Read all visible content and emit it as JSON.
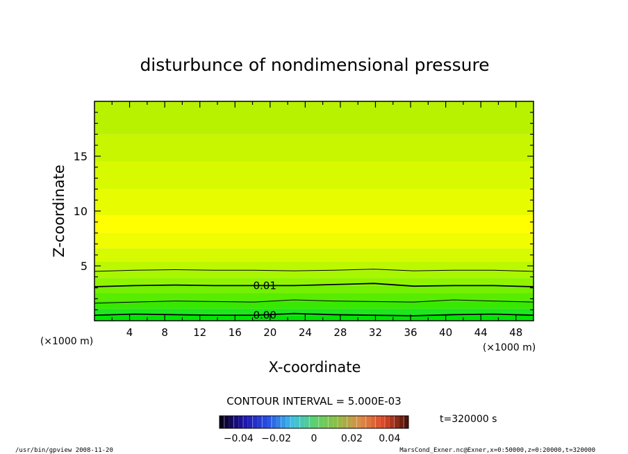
{
  "chart_data": {
    "type": "contour",
    "title": "disturbunce of nondimensional pressure",
    "xlabel": "X-coordinate",
    "ylabel": "Z-coordinate",
    "x_unit_note": "(×1000 m)",
    "y_unit_note": "(×1000 m)",
    "xlim": [
      0,
      50
    ],
    "ylim": [
      0,
      20
    ],
    "x_ticks": [
      4,
      8,
      12,
      16,
      20,
      24,
      28,
      32,
      36,
      40,
      44,
      48
    ],
    "y_ticks": [
      5,
      10,
      15
    ],
    "contour_interval_label": "CONTOUR INTERVAL = 5.000E-03",
    "contour_labels": [
      {
        "text": "0.01",
        "x": 17.5,
        "z": 3.2
      },
      {
        "text": "0.00",
        "x": 17.5,
        "z": 0.5
      }
    ],
    "contour_lines": [
      {
        "level": 0.015,
        "z": [
          4.5,
          4.6,
          4.65,
          4.6,
          4.6,
          4.55,
          4.6,
          4.7,
          4.55,
          4.6,
          4.6,
          4.5
        ]
      },
      {
        "level": 0.01,
        "z": [
          3.1,
          3.2,
          3.25,
          3.2,
          3.2,
          3.2,
          3.3,
          3.4,
          3.15,
          3.2,
          3.2,
          3.1
        ]
      },
      {
        "level": 0.005,
        "z": [
          1.6,
          1.7,
          1.8,
          1.75,
          1.7,
          1.9,
          1.8,
          1.75,
          1.7,
          1.9,
          1.8,
          1.7
        ]
      },
      {
        "level": 0.0,
        "z": [
          0.5,
          0.6,
          0.55,
          0.5,
          0.5,
          0.65,
          0.55,
          0.5,
          0.45,
          0.55,
          0.6,
          0.5
        ]
      }
    ],
    "color_bands_by_height": [
      {
        "z_from": 0,
        "z_to": 0.5,
        "color": "#00e600"
      },
      {
        "z_from": 0.5,
        "z_to": 1.1,
        "color": "#1ee61e"
      },
      {
        "z_from": 1.1,
        "z_to": 1.8,
        "color": "#38e800"
      },
      {
        "z_from": 1.8,
        "z_to": 2.5,
        "color": "#58ec00"
      },
      {
        "z_from": 2.5,
        "z_to": 3.2,
        "color": "#74f000"
      },
      {
        "z_from": 3.2,
        "z_to": 3.9,
        "color": "#90f400"
      },
      {
        "z_from": 3.9,
        "z_to": 4.6,
        "color": "#a8f600"
      },
      {
        "z_from": 4.6,
        "z_to": 5.4,
        "color": "#bcf800"
      },
      {
        "z_from": 5.4,
        "z_to": 6.6,
        "color": "#d6fa00"
      },
      {
        "z_from": 6.6,
        "z_to": 8.0,
        "color": "#f0fc00"
      },
      {
        "z_from": 8.0,
        "z_to": 9.6,
        "color": "#ffff00"
      },
      {
        "z_from": 9.6,
        "z_to": 12.0,
        "color": "#e8fc00"
      },
      {
        "z_from": 12.0,
        "z_to": 14.5,
        "color": "#d8fa00"
      },
      {
        "z_from": 14.5,
        "z_to": 17.0,
        "color": "#c8f600"
      },
      {
        "z_from": 17.0,
        "z_to": 20.0,
        "color": "#b8f200"
      }
    ],
    "colorbar": {
      "tick_labels": [
        "−0.04",
        "−0.02",
        "0",
        "0.02",
        "0.04"
      ],
      "tick_values": [
        -0.04,
        -0.02,
        0,
        0.02,
        0.04
      ],
      "range": [
        -0.05,
        0.05
      ],
      "n_bins": 40
    },
    "time_label": "t=320000 s"
  },
  "footer": {
    "left": "/usr/bin/gpview   2008-11-20",
    "right": "MarsCond_Exner.nc@Exner,x=0:50000,z=0:20000,t=320000"
  }
}
